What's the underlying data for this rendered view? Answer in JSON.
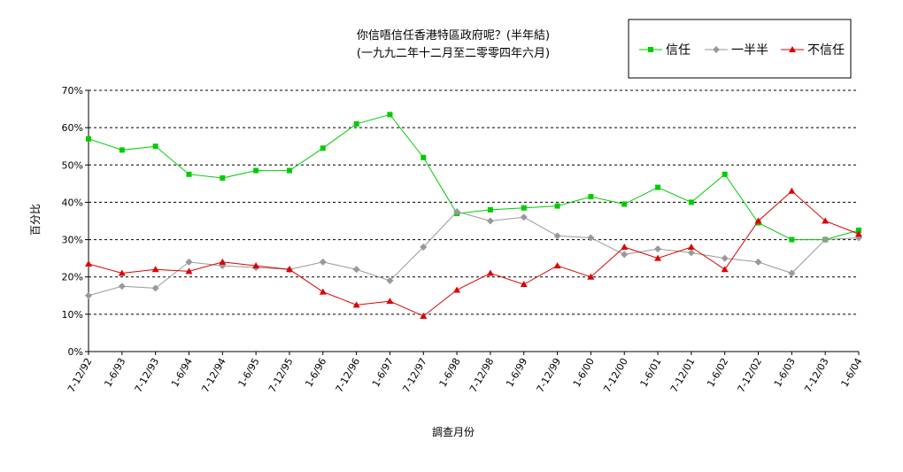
{
  "chart_data": {
    "type": "line",
    "title": "你信唔信任香港特區政府呢？(半年結)",
    "subtitle": "(一九九二年十二月至二零零四年六月)",
    "xlabel": "調查月份",
    "ylabel": "百分比",
    "ylim": [
      0,
      70
    ],
    "yticks": [
      "0%",
      "10%",
      "20%",
      "30%",
      "40%",
      "50%",
      "60%",
      "70%"
    ],
    "grid": true,
    "legend_position": "top-right",
    "categories": [
      "7-12/92",
      "1-6/93",
      "7-12/93",
      "1-6/94",
      "7-12/94",
      "1-6/95",
      "7-12/95",
      "1-6/96",
      "7-12/96",
      "1-6/97",
      "7-12/97",
      "1-6/98",
      "7-12/98",
      "1-6/99",
      "7-12/99",
      "1-6/00",
      "7-12/00",
      "1-6/01",
      "7-12/01",
      "1-6/02",
      "7-12/02",
      "1-6/03",
      "7-12/03",
      "1-6/04"
    ],
    "series": [
      {
        "name": "信任",
        "color": "#00cc00",
        "marker": "square",
        "values": [
          57,
          54,
          55,
          47.5,
          46.5,
          48.5,
          48.5,
          54.5,
          61,
          63.5,
          52,
          37,
          38,
          38.5,
          39,
          41.5,
          39.5,
          44,
          40,
          47.5,
          34.5,
          30,
          30,
          32.5
        ]
      },
      {
        "name": "一半半",
        "color": "#999999",
        "marker": "diamond",
        "values": [
          15,
          17.5,
          17,
          24,
          23,
          22.5,
          22,
          24,
          22,
          19,
          28,
          37.5,
          35,
          36,
          31,
          30.5,
          26,
          27.5,
          26.5,
          25,
          24,
          21,
          30,
          30.5
        ]
      },
      {
        "name": "不信任",
        "color": "#dd0000",
        "marker": "triangle",
        "values": [
          23.5,
          21,
          22,
          21.5,
          24,
          23,
          22,
          16,
          12.5,
          13.5,
          9.5,
          16.5,
          21,
          18,
          23,
          20,
          28,
          25,
          28,
          22,
          35,
          43,
          35,
          31.5
        ]
      }
    ]
  }
}
